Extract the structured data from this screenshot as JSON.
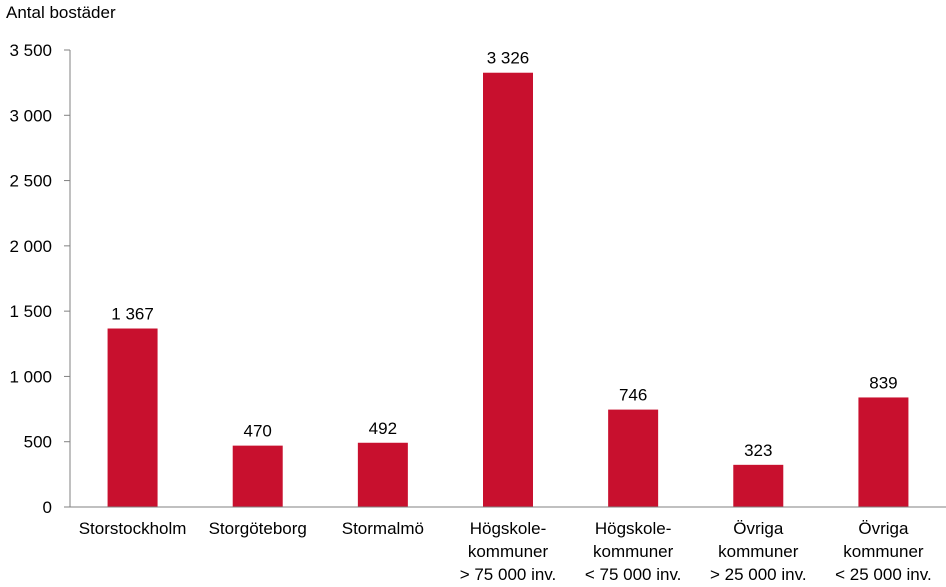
{
  "chart_data": {
    "type": "bar",
    "ylabel": "Antal bostäder",
    "ylim": [
      0,
      3500
    ],
    "yticks": [
      0,
      500,
      1000,
      1500,
      2000,
      2500,
      3000,
      3500
    ],
    "ytick_labels": [
      "0",
      "500",
      "1 000",
      "1 500",
      "2 000",
      "2 500",
      "3 000",
      "3 500"
    ],
    "categories": [
      [
        "Storstockholm"
      ],
      [
        "Storgöteborg"
      ],
      [
        "Stormalmö"
      ],
      [
        "Högskole-",
        "kommuner",
        "> 75 000 inv."
      ],
      [
        "Högskole-",
        "kommuner",
        "< 75 000 inv."
      ],
      [
        "Övriga",
        "kommuner",
        "> 25 000 inv."
      ],
      [
        "Övriga",
        "kommuner",
        "< 25 000 inv."
      ]
    ],
    "values": [
      1367,
      470,
      492,
      3326,
      746,
      323,
      839
    ],
    "value_labels": [
      "1 367",
      "470",
      "492",
      "3 326",
      "746",
      "323",
      "839"
    ],
    "bar_color": "#C8102E",
    "axis_color": "#808080",
    "grid": false,
    "legend": "none"
  }
}
